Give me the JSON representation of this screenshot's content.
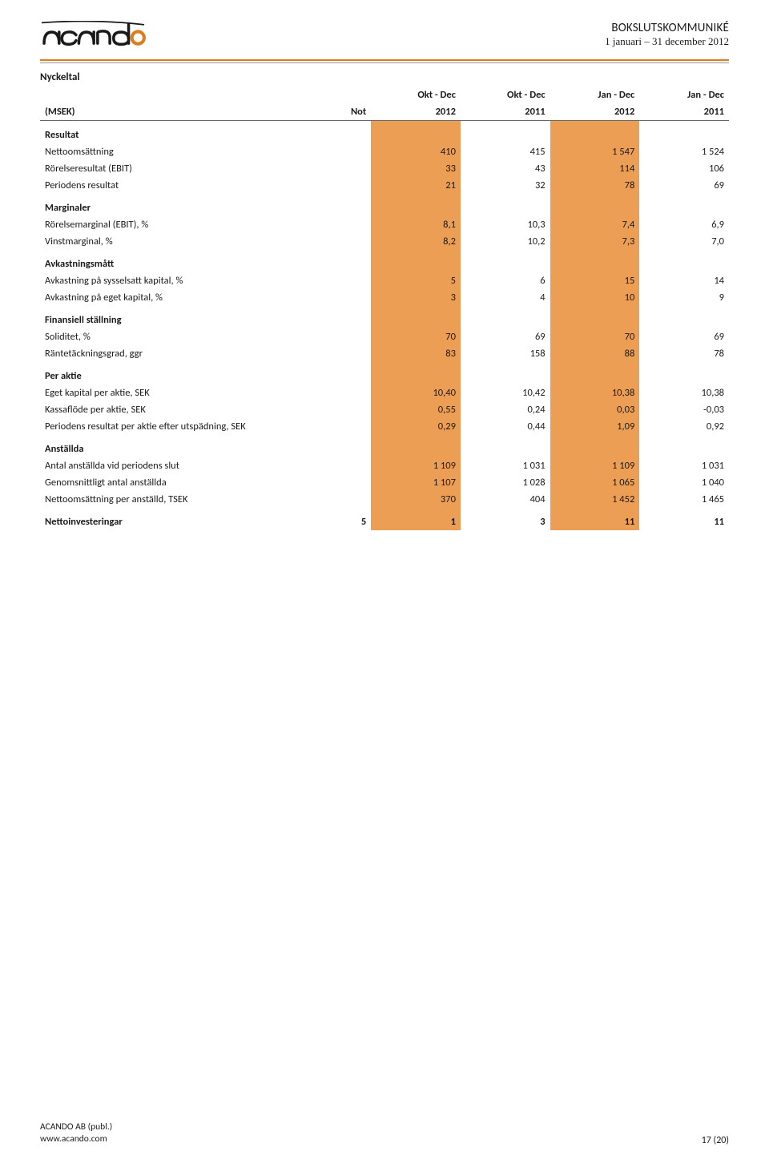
{
  "header": {
    "title": "BOKSLUTSKOMMUNIKÉ",
    "subtitle": "1 januari – 31 december 2012"
  },
  "section_title": "Nyckeltal",
  "table": {
    "highlight_color": "#ec9e54",
    "rule_color": "#de7b1a",
    "header_top": {
      "label": "",
      "not": "",
      "c1": "Okt - Dec",
      "c2": "Okt - Dec",
      "c3": "Jan - Dec",
      "c4": "Jan - Dec"
    },
    "header_bottom": {
      "label": "(MSEK)",
      "not": "Not",
      "c1": "2012",
      "c2": "2011",
      "c3": "2012",
      "c4": "2011"
    },
    "sections": [
      {
        "title": "Resultat",
        "rows": [
          {
            "label": "Nettoomsättning",
            "not": "",
            "c1": "410",
            "c2": "415",
            "c3": "1 547",
            "c4": "1 524"
          },
          {
            "label": "Rörelseresultat (EBIT)",
            "not": "",
            "c1": "33",
            "c2": "43",
            "c3": "114",
            "c4": "106"
          },
          {
            "label": "Periodens resultat",
            "not": "",
            "c1": "21",
            "c2": "32",
            "c3": "78",
            "c4": "69"
          }
        ]
      },
      {
        "title": "Marginaler",
        "rows": [
          {
            "label": "Rörelsemarginal (EBIT), %",
            "not": "",
            "c1": "8,1",
            "c2": "10,3",
            "c3": "7,4",
            "c4": "6,9"
          },
          {
            "label": "Vinstmarginal, %",
            "not": "",
            "c1": "8,2",
            "c2": "10,2",
            "c3": "7,3",
            "c4": "7,0"
          }
        ]
      },
      {
        "title": "Avkastningsmått",
        "rows": [
          {
            "label": "Avkastning på sysselsatt kapital, %",
            "not": "",
            "c1": "5",
            "c2": "6",
            "c3": "15",
            "c4": "14"
          },
          {
            "label": "Avkastning på eget kapital, %",
            "not": "",
            "c1": "3",
            "c2": "4",
            "c3": "10",
            "c4": "9"
          }
        ]
      },
      {
        "title": "Finansiell ställning",
        "rows": [
          {
            "label": "Soliditet, %",
            "not": "",
            "c1": "70",
            "c2": "69",
            "c3": "70",
            "c4": "69"
          },
          {
            "label": "Räntetäckningsgrad, ggr",
            "not": "",
            "c1": "83",
            "c2": "158",
            "c3": "88",
            "c4": "78"
          }
        ]
      },
      {
        "title": "Per aktie",
        "rows": [
          {
            "label": "Eget kapital per aktie, SEK",
            "not": "",
            "c1": "10,40",
            "c2": "10,42",
            "c3": "10,38",
            "c4": "10,38"
          },
          {
            "label": "Kassaflöde per aktie, SEK",
            "not": "",
            "c1": "0,55",
            "c2": "0,24",
            "c3": "0,03",
            "c4": "-0,03"
          },
          {
            "label": "Periodens resultat per aktie efter utspädning, SEK",
            "not": "",
            "c1": "0,29",
            "c2": "0,44",
            "c3": "1,09",
            "c4": "0,92"
          }
        ]
      },
      {
        "title": "Anställda",
        "rows": [
          {
            "label": "Antal anställda vid periodens slut",
            "not": "",
            "c1": "1 109",
            "c2": "1 031",
            "c3": "1 109",
            "c4": "1 031"
          },
          {
            "label": "Genomsnittligt antal anställda",
            "not": "",
            "c1": "1 107",
            "c2": "1 028",
            "c3": "1 065",
            "c4": "1 040"
          },
          {
            "label": "Nettoomsättning per anställd, TSEK",
            "not": "",
            "c1": "370",
            "c2": "404",
            "c3": "1 452",
            "c4": "1 465"
          }
        ]
      }
    ],
    "final_row": {
      "label": "Nettoinvesteringar",
      "not": "5",
      "c1": "1",
      "c2": "3",
      "c3": "11",
      "c4": "11"
    }
  },
  "footer": {
    "company": "ACANDO AB (publ.)",
    "url": "www.acando.com",
    "page": "17 (20)"
  },
  "logo": {
    "stroke_color": "#1a1a1a",
    "accent_color": "#de7b1a"
  }
}
